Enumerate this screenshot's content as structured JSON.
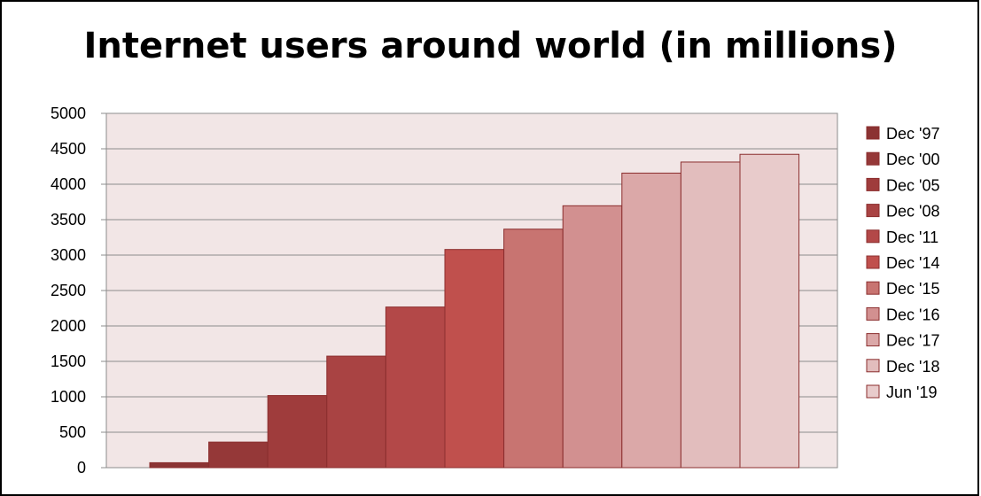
{
  "chart_data": {
    "type": "bar",
    "title": "Internet users around world (in millions)",
    "xlabel": "",
    "ylabel": "",
    "ylim": [
      0,
      5000
    ],
    "yticks": [
      0,
      500,
      1000,
      1500,
      2000,
      2500,
      3000,
      3500,
      4000,
      4500,
      5000
    ],
    "grid": true,
    "legend_position": "right",
    "series": [
      {
        "name": "Dec '97",
        "value": 70,
        "color": "#8b3333"
      },
      {
        "name": "Dec '00",
        "value": 361,
        "color": "#953838"
      },
      {
        "name": "Dec '05",
        "value": 1018,
        "color": "#9f3c3c"
      },
      {
        "name": "Dec '08",
        "value": 1574,
        "color": "#a94343"
      },
      {
        "name": "Dec '11",
        "value": 2267,
        "color": "#b34848"
      },
      {
        "name": "Dec '14",
        "value": 3079,
        "color": "#c0504d"
      },
      {
        "name": "Dec '15",
        "value": 3366,
        "color": "#c87471"
      },
      {
        "name": "Dec '16",
        "value": 3696,
        "color": "#d29090"
      },
      {
        "name": "Dec '17",
        "value": 4157,
        "color": "#dba8a8"
      },
      {
        "name": "Dec '18",
        "value": 4313,
        "color": "#e2bdbd"
      },
      {
        "name": "Jun '19",
        "value": 4422,
        "color": "#e8cbcb"
      }
    ]
  }
}
